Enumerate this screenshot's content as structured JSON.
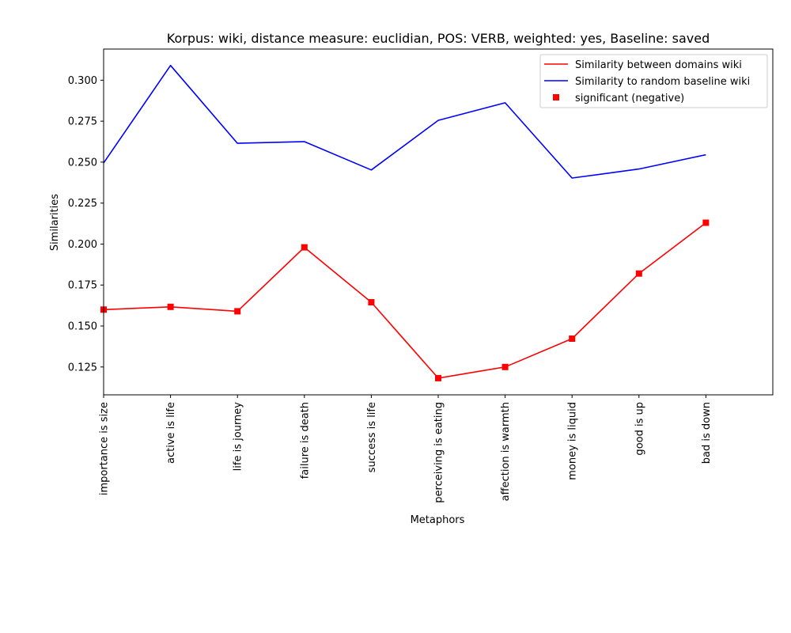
{
  "chart_data": {
    "type": "line",
    "title": "Korpus: wiki, distance measure: euclidian, POS: VERB, weighted: yes, Baseline: saved",
    "xlabel": "Metaphors",
    "ylabel": "Similarities",
    "categories": [
      "importance is size",
      "active is life",
      "life is journey",
      "failure is death",
      "success is life",
      "perceiving is eating",
      "affection is warmth",
      "money is liquid",
      "good is up",
      "bad is down"
    ],
    "ylim": [
      0.108,
      0.319
    ],
    "yticks": [
      "0.125",
      "0.150",
      "0.175",
      "0.200",
      "0.225",
      "0.250",
      "0.275",
      "0.300"
    ],
    "series": [
      {
        "name": "Similarity between domains wiki",
        "color": "#ff0000",
        "marker": "line",
        "values": [
          0.16,
          0.1617,
          0.159,
          0.198,
          0.1645,
          0.1182,
          0.125,
          0.1423,
          0.182,
          0.213
        ]
      },
      {
        "name": "Similarity to random baseline wiki",
        "color": "#0000ff",
        "marker": "line",
        "values": [
          0.2495,
          0.309,
          0.2615,
          0.2625,
          0.2452,
          0.2755,
          0.2862,
          0.2403,
          0.2458,
          0.2545
        ]
      },
      {
        "name": "significant (negative)",
        "color": "#ff0000",
        "marker": "square",
        "values": [
          0.16,
          0.1617,
          0.159,
          0.198,
          0.1645,
          0.1182,
          0.125,
          0.1423,
          0.182,
          0.213
        ]
      }
    ],
    "legend": "top-right",
    "grid": false
  }
}
